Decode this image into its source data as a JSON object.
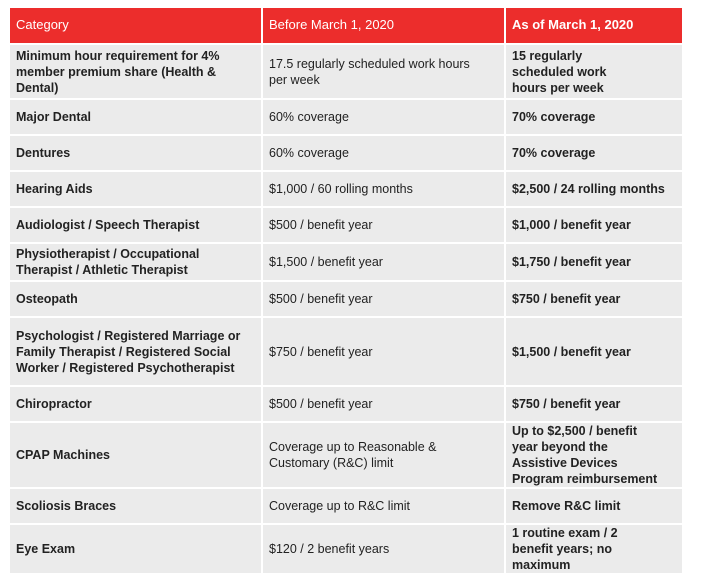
{
  "headers": [
    "Category",
    "Before March 1, 2020",
    "As of March 1, 2020"
  ],
  "rows": [
    {
      "category": "Minimum hour requirement for 4% member premium share (Health & Dental)",
      "before": "17.5 regularly scheduled work hours per week",
      "after": "15 regularly scheduled work hours per week"
    },
    {
      "category": "Major Dental",
      "before": "60% coverage",
      "after": "70% coverage"
    },
    {
      "category": "Dentures",
      "before": "60% coverage",
      "after": "70% coverage"
    },
    {
      "category": "Hearing Aids",
      "before": "$1,000 / 60 rolling months",
      "after": "$2,500 / 24 rolling months"
    },
    {
      "category": "Audiologist / Speech Therapist",
      "before": "$500 / benefit year",
      "after": "$1,000 / benefit year"
    },
    {
      "category": "Physiotherapist / Occupational Therapist / Athletic Therapist",
      "before": "$1,500 / benefit year",
      "after": "$1,750 / benefit year"
    },
    {
      "category": "Osteopath",
      "before": "$500 / benefit year",
      "after": "$750 / benefit year"
    },
    {
      "category": "Psychologist / Registered Marriage or Family Therapist / Registered Social Worker / Registered Psychotherapist",
      "before": "$750 / benefit year",
      "after": "$1,500 / benefit year"
    },
    {
      "category": "Chiropractor",
      "before": "$500 / benefit year",
      "after": "$750 / benefit year"
    },
    {
      "category": "CPAP Machines",
      "before": "Coverage up to Reasonable & Customary (R&C) limit",
      "after": "Up to $2,500 / benefit year beyond the Assistive Devices Program reimbursement"
    },
    {
      "category": "Scoliosis Braces",
      "before": "Coverage up to R&C limit",
      "after": "Remove R&C limit"
    },
    {
      "category": "Eye Exam",
      "before": "$120 / 2 benefit years",
      "after": "1 routine exam / 2 benefit years; no maximum"
    }
  ]
}
